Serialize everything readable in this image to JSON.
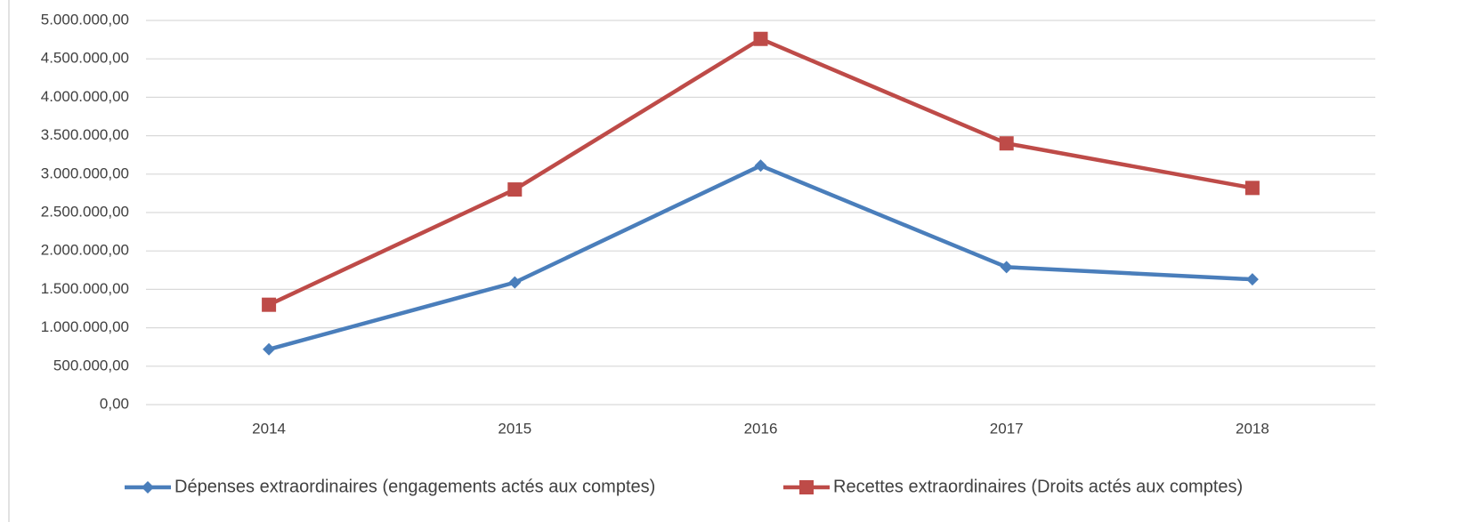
{
  "chart_data": {
    "type": "line",
    "categories": [
      "2014",
      "2015",
      "2016",
      "2017",
      "2018"
    ],
    "series": [
      {
        "name": "Dépenses extraordinaires (engagements actés aux comptes)",
        "color": "#4a7ebb",
        "marker": "diamond",
        "values": [
          720000,
          1590000,
          3110000,
          1790000,
          1630000
        ]
      },
      {
        "name": "Recettes extraordinaires (Droits actés aux comptes)",
        "color": "#be4b48",
        "marker": "square",
        "values": [
          1300000,
          2800000,
          4760000,
          3400000,
          2820000
        ]
      }
    ],
    "ylim": [
      0,
      5000000
    ],
    "yticks": [
      {
        "value": 0,
        "label": "0,00"
      },
      {
        "value": 500000,
        "label": "500.000,00"
      },
      {
        "value": 1000000,
        "label": "1.000.000,00"
      },
      {
        "value": 1500000,
        "label": "1.500.000,00"
      },
      {
        "value": 2000000,
        "label": "2.000.000,00"
      },
      {
        "value": 2500000,
        "label": "2.500.000,00"
      },
      {
        "value": 3000000,
        "label": "3.000.000,00"
      },
      {
        "value": 3500000,
        "label": "3.500.000,00"
      },
      {
        "value": 4000000,
        "label": "4.000.000,00"
      },
      {
        "value": 4500000,
        "label": "4.500.000,00"
      },
      {
        "value": 5000000,
        "label": "5.000.000,00"
      }
    ],
    "grid": true,
    "legend": "bottom"
  }
}
